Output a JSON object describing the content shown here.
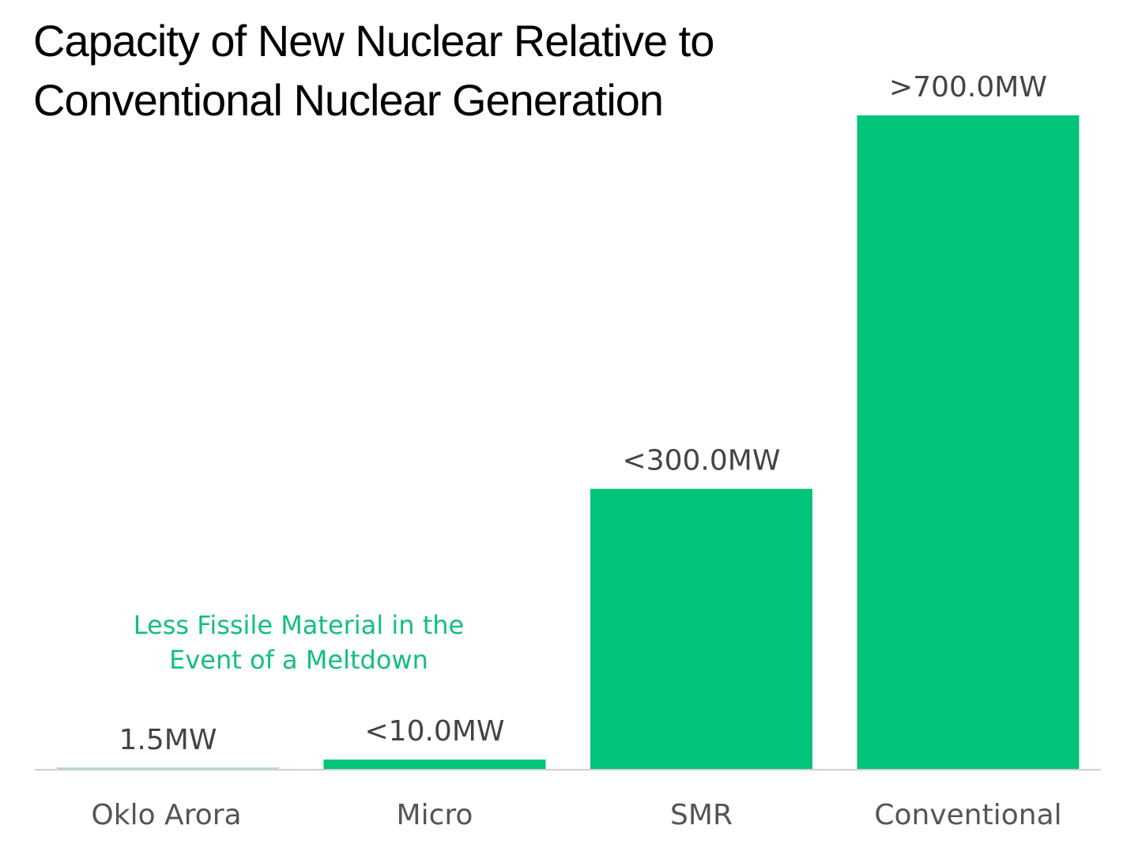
{
  "chart_data": {
    "type": "bar",
    "title_lines": [
      "Capacity of New Nuclear Relative to",
      "Conventional Nuclear Generation"
    ],
    "categories": [
      "Oklo Arora",
      "Micro",
      "SMR",
      "Conventional"
    ],
    "values": [
      1.5,
      10,
      300,
      700
    ],
    "data_labels": [
      "1.5MW",
      "<10.0MW",
      "<300.0MW",
      ">700.0MW"
    ],
    "unit": "MW",
    "ylim": [
      0,
      700
    ],
    "grid": false,
    "annotation": [
      "Less Fissile Material in the",
      "Event of a Meltdown"
    ],
    "colors": {
      "bar": "#00c47a",
      "oklo_bar": "#a9dcc8",
      "annotation": "#12c07a",
      "label": "#444444",
      "axis": "#d0d0d0"
    }
  }
}
